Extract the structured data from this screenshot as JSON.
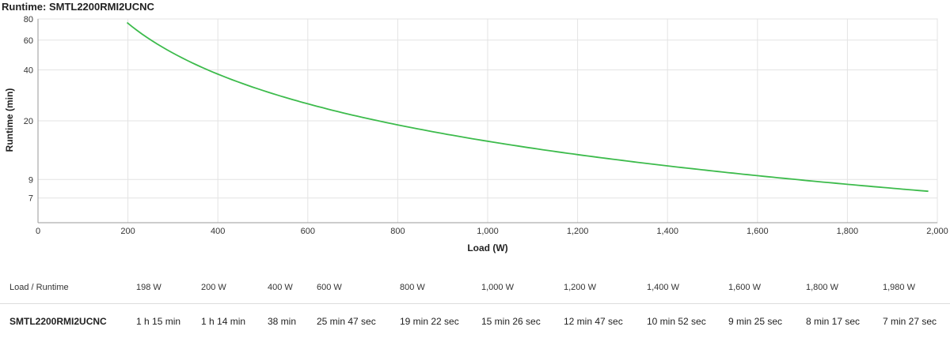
{
  "chart_data": {
    "type": "line",
    "title": "Runtime: SMTL2200RMI2UCNC",
    "xlabel": "Load (W)",
    "ylabel": "Runtime (min)",
    "xlim": [
      0,
      2000
    ],
    "ylim": [
      5,
      80
    ],
    "y_scale": "log",
    "grid": true,
    "x_ticks": [
      0,
      200,
      400,
      600,
      800,
      1000,
      1200,
      1400,
      1600,
      1800,
      2000
    ],
    "x_tick_labels": [
      "0",
      "200",
      "400",
      "600",
      "800",
      "1,000",
      "1,200",
      "1,400",
      "1,600",
      "1,800",
      "2,000"
    ],
    "y_ticks": [
      7,
      9,
      20,
      40,
      60,
      80
    ],
    "y_tick_labels": [
      "7",
      "9",
      "20",
      "40",
      "60",
      "80"
    ],
    "series": [
      {
        "color": "#3dbb4c",
        "x": [
          198,
          200,
          400,
          600,
          800,
          1000,
          1200,
          1400,
          1600,
          1800,
          1980
        ],
        "y": [
          75,
          74,
          38,
          25.78,
          19.37,
          15.43,
          12.78,
          10.87,
          9.42,
          8.28,
          7.45
        ]
      }
    ]
  },
  "table": {
    "header": [
      "Load / Runtime",
      "198 W",
      "200 W",
      "400 W",
      "600 W",
      "800 W",
      "1,000 W",
      "1,200 W",
      "1,400 W",
      "1,600 W",
      "1,800 W",
      "1,980 W"
    ],
    "row": [
      "SMTL2200RMI2UCNC",
      "1 h 15 min",
      "1 h 14 min",
      "38 min",
      "25 min 47 sec",
      "19 min 22 sec",
      "15 min 26 sec",
      "12 min 47 sec",
      "10 min 52 sec",
      "9 min 25 sec",
      "8 min 17 sec",
      "7 min 27 sec"
    ]
  }
}
